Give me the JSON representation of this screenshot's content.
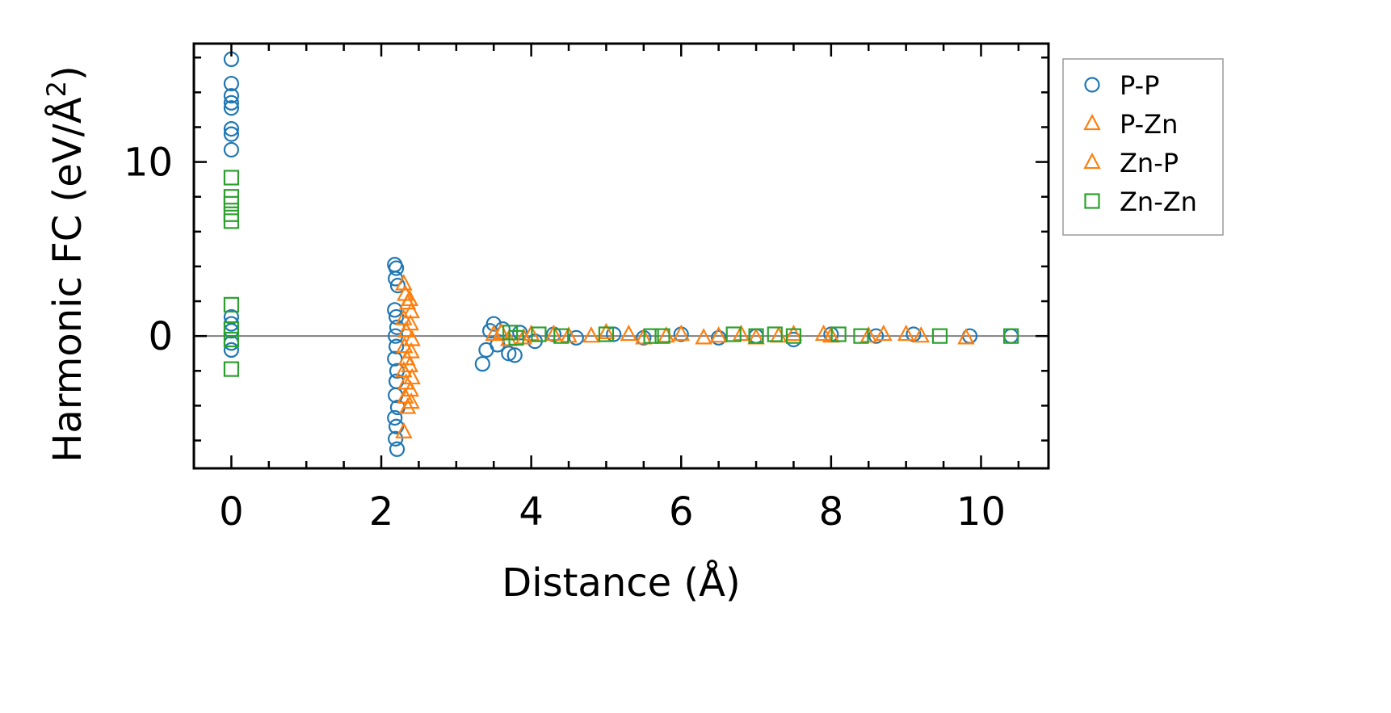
{
  "chart_data": {
    "type": "scatter",
    "title": "",
    "xlabel": "Distance (Å)",
    "ylabel": "Harmonic FC (eV/Å²)",
    "ylabel_parts": {
      "main": "Harmonic FC (eV/Å",
      "sup": "2",
      "close": ")"
    },
    "xlim": [
      -0.5,
      10.9
    ],
    "ylim": [
      -7.6,
      16.8
    ],
    "x_ticks": [
      0,
      2,
      4,
      6,
      8,
      10
    ],
    "x_tick_labels": [
      "0",
      "2",
      "4",
      "6",
      "8",
      "10"
    ],
    "y_ticks": [
      0,
      10
    ],
    "y_tick_labels": [
      "0",
      "10"
    ],
    "x_minor_step": 0.5,
    "y_minor_step": 2,
    "zero_line": true,
    "grid": false,
    "legend_position": "outside-right-top",
    "series": [
      {
        "name": "P-P",
        "marker": "circle",
        "color": "#1f77b4",
        "points": [
          [
            0,
            15.9
          ],
          [
            0,
            14.5
          ],
          [
            0,
            13.8
          ],
          [
            0,
            13.4
          ],
          [
            0,
            13.1
          ],
          [
            0,
            11.9
          ],
          [
            0,
            11.6
          ],
          [
            0,
            10.7
          ],
          [
            0,
            1.1
          ],
          [
            0,
            0.7
          ],
          [
            0,
            0.3
          ],
          [
            0,
            -0.4
          ],
          [
            0,
            -0.8
          ],
          [
            2.18,
            4.1
          ],
          [
            2.2,
            3.9
          ],
          [
            2.19,
            3.3
          ],
          [
            2.22,
            2.9
          ],
          [
            2.18,
            1.5
          ],
          [
            2.2,
            1.1
          ],
          [
            2.21,
            0.5
          ],
          [
            2.19,
            0.0
          ],
          [
            2.2,
            -0.6
          ],
          [
            2.18,
            -1.3
          ],
          [
            2.21,
            -2.0
          ],
          [
            2.2,
            -2.6
          ],
          [
            2.19,
            -3.4
          ],
          [
            2.22,
            -4.1
          ],
          [
            2.18,
            -4.7
          ],
          [
            2.2,
            -5.2
          ],
          [
            2.19,
            -5.9
          ],
          [
            2.21,
            -6.5
          ],
          [
            3.35,
            -1.6
          ],
          [
            3.4,
            -0.8
          ],
          [
            3.45,
            0.3
          ],
          [
            3.5,
            0.7
          ],
          [
            3.55,
            -0.5
          ],
          [
            3.62,
            0.4
          ],
          [
            3.7,
            -1.0
          ],
          [
            3.78,
            -1.1
          ],
          [
            3.85,
            0.2
          ],
          [
            4.05,
            -0.3
          ],
          [
            4.3,
            0.1
          ],
          [
            4.6,
            -0.1
          ],
          [
            5.1,
            0.1
          ],
          [
            5.5,
            -0.1
          ],
          [
            6.0,
            0.1
          ],
          [
            6.5,
            -0.1
          ],
          [
            7.0,
            0.0
          ],
          [
            7.5,
            -0.2
          ],
          [
            8.0,
            0.1
          ],
          [
            8.6,
            0.0
          ],
          [
            9.1,
            0.1
          ],
          [
            9.85,
            0.0
          ],
          [
            10.4,
            0.0
          ]
        ]
      },
      {
        "name": "P-Zn",
        "marker": "triangle",
        "color": "#ff7f0e",
        "points": [
          [
            2.3,
            3.0
          ],
          [
            2.32,
            2.4
          ],
          [
            2.35,
            1.9
          ],
          [
            2.3,
            1.0
          ],
          [
            2.33,
            0.3
          ],
          [
            2.31,
            -0.6
          ],
          [
            2.34,
            -1.3
          ],
          [
            2.3,
            -2.0
          ],
          [
            2.33,
            -2.7
          ],
          [
            2.32,
            -3.5
          ],
          [
            2.35,
            -4.1
          ],
          [
            2.3,
            -5.5
          ],
          [
            3.5,
            0.1
          ],
          [
            3.7,
            -0.2
          ],
          [
            4.0,
            0.1
          ],
          [
            4.5,
            0.0
          ],
          [
            5.0,
            0.2
          ],
          [
            5.5,
            -0.1
          ],
          [
            6.0,
            0.1
          ],
          [
            6.5,
            0.0
          ],
          [
            7.0,
            -0.1
          ],
          [
            7.5,
            0.1
          ],
          [
            8.0,
            0.0
          ],
          [
            8.7,
            0.1
          ],
          [
            9.2,
            0.0
          ],
          [
            9.8,
            -0.1
          ]
        ]
      },
      {
        "name": "Zn-P",
        "marker": "triangle",
        "color": "#ff7f0e",
        "points": [
          [
            2.38,
            2.1
          ],
          [
            2.4,
            1.4
          ],
          [
            2.39,
            0.7
          ],
          [
            2.41,
            -0.2
          ],
          [
            2.4,
            -0.9
          ],
          [
            2.38,
            -1.7
          ],
          [
            2.41,
            -2.4
          ],
          [
            2.39,
            -3.1
          ],
          [
            2.4,
            -3.8
          ],
          [
            3.6,
            0.2
          ],
          [
            3.9,
            -0.1
          ],
          [
            4.3,
            0.1
          ],
          [
            4.8,
            0.0
          ],
          [
            5.3,
            0.1
          ],
          [
            5.8,
            0.0
          ],
          [
            6.3,
            -0.1
          ],
          [
            6.8,
            0.1
          ],
          [
            7.3,
            0.0
          ],
          [
            7.9,
            0.1
          ],
          [
            8.5,
            0.0
          ],
          [
            9.0,
            0.1
          ]
        ]
      },
      {
        "name": "Zn-Zn",
        "marker": "square",
        "color": "#2ca02c",
        "points": [
          [
            0,
            9.1
          ],
          [
            0,
            8.0
          ],
          [
            0,
            7.6
          ],
          [
            0,
            7.0
          ],
          [
            0,
            6.6
          ],
          [
            0,
            1.8
          ],
          [
            0,
            0.4
          ],
          [
            0,
            -0.2
          ],
          [
            0,
            -1.9
          ],
          [
            3.72,
            0.2
          ],
          [
            3.8,
            -0.1
          ],
          [
            4.1,
            0.1
          ],
          [
            4.4,
            0.0
          ],
          [
            5.0,
            0.1
          ],
          [
            5.6,
            0.0
          ],
          [
            5.75,
            0.0
          ],
          [
            6.7,
            0.1
          ],
          [
            7.0,
            0.0
          ],
          [
            7.25,
            0.1
          ],
          [
            7.5,
            0.0
          ],
          [
            8.1,
            0.1
          ],
          [
            8.4,
            0.0
          ],
          [
            9.45,
            0.0
          ],
          [
            10.4,
            0.0
          ]
        ]
      }
    ]
  }
}
